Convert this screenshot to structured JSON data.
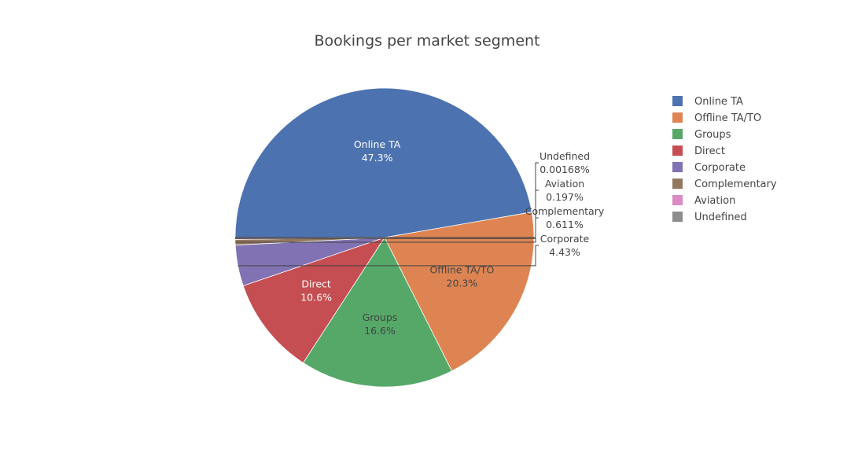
{
  "chart_data": {
    "type": "pie",
    "title": "Bookings per market segment",
    "legend_position": "right",
    "slices": [
      {
        "label": "Online TA",
        "percent": 47.3,
        "percent_text": "47.3%",
        "color": "#4c72b0",
        "label_position": "inside",
        "label_color": "#ffffff"
      },
      {
        "label": "Offline TA/TO",
        "percent": 20.3,
        "percent_text": "20.3%",
        "color": "#dd8452",
        "label_position": "inside",
        "label_color": "#444444"
      },
      {
        "label": "Groups",
        "percent": 16.6,
        "percent_text": "16.6%",
        "color": "#55a868",
        "label_position": "inside",
        "label_color": "#444444"
      },
      {
        "label": "Direct",
        "percent": 10.6,
        "percent_text": "10.6%",
        "color": "#c44e52",
        "label_position": "inside",
        "label_color": "#ffffff"
      },
      {
        "label": "Corporate",
        "percent": 4.43,
        "percent_text": "4.43%",
        "color": "#8172b3",
        "label_position": "outside",
        "label_color": "#444444"
      },
      {
        "label": "Complementary",
        "percent": 0.611,
        "percent_text": "0.611%",
        "color": "#937860",
        "label_position": "outside",
        "label_color": "#444444"
      },
      {
        "label": "Aviation",
        "percent": 0.197,
        "percent_text": "0.197%",
        "color": "#da8bc3",
        "label_position": "outside",
        "label_color": "#444444"
      },
      {
        "label": "Undefined",
        "percent": 0.00168,
        "percent_text": "0.00168%",
        "color": "#8c8c8c",
        "label_position": "outside",
        "label_color": "#444444"
      }
    ]
  }
}
